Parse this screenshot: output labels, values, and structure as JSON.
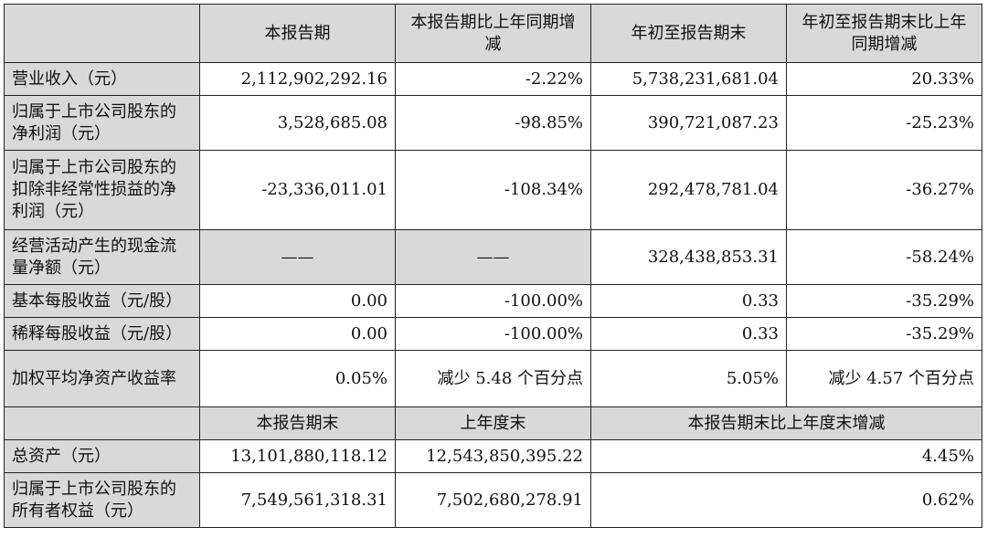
{
  "header": {
    "col1": "本报告期",
    "col2": "本报告期比上年同期增减",
    "col3": "年初至报告期末",
    "col4": "年初至报告期末比上年同期增减"
  },
  "rows": [
    {
      "label": "营业收入（元）",
      "v1": "2,112,902,292.16",
      "v2": "-2.22%",
      "v3": "5,738,231,681.04",
      "v4": "20.33%"
    },
    {
      "label": "归属于上市公司股东的净利润（元）",
      "v1": "3,528,685.08",
      "v2": "-98.85%",
      "v3": "390,721,087.23",
      "v4": "-25.23%"
    },
    {
      "label": "归属于上市公司股东的扣除非经常性损益的净利润（元）",
      "v1": "-23,336,011.01",
      "v2": "-108.34%",
      "v3": "292,478,781.04",
      "v4": "-36.27%"
    },
    {
      "label": "经营活动产生的现金流量净额（元）",
      "v1": "——",
      "v2": "——",
      "v3": "328,438,853.31",
      "v4": "-58.24%"
    },
    {
      "label": "基本每股收益（元/股）",
      "v1": "0.00",
      "v2": "-100.00%",
      "v3": "0.33",
      "v4": "-35.29%"
    },
    {
      "label": "稀释每股收益（元/股）",
      "v1": "0.00",
      "v2": "-100.00%",
      "v3": "0.33",
      "v4": "-35.29%"
    },
    {
      "label": "加权平均净资产收益率",
      "v1": "0.05%",
      "v2": "减少 5.48 个百分点",
      "v3": "5.05%",
      "v4": "减少 4.57 个百分点"
    }
  ],
  "header2": {
    "col1": "本报告期末",
    "col2": "上年度末",
    "col3": "本报告期末比上年度末增减"
  },
  "rows2": [
    {
      "label": "总资产（元）",
      "v1": "13,101,880,118.12",
      "v2": "12,543,850,395.22",
      "v3": "4.45%"
    },
    {
      "label": "归属于上市公司股东的所有者权益（元）",
      "v1": "7,549,561,318.31",
      "v2": "7,502,680,278.91",
      "v3": "0.62%"
    }
  ]
}
